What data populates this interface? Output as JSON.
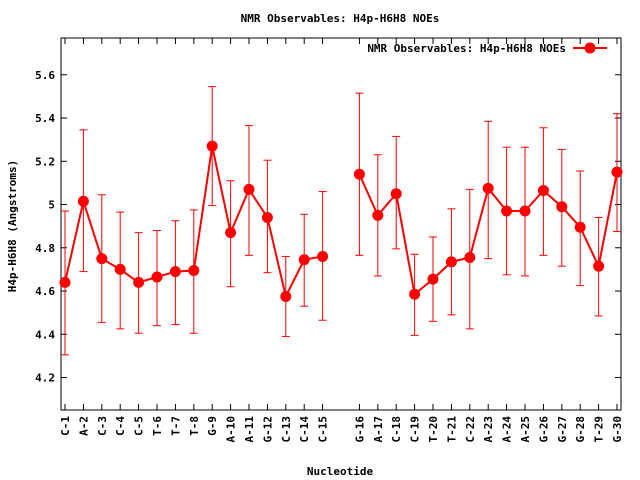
{
  "chart_data": {
    "type": "line",
    "title": "NMR Observables: H4p-H6H8 NOEs",
    "xlabel": "Nucleotide",
    "ylabel": "H4p-H6H8 (Angstroms)",
    "ylim": [
      4.05,
      5.77
    ],
    "yticks": [
      "4.2",
      "4.4",
      "4.6",
      "4.8",
      "5",
      "5.2",
      "5.4",
      "5.6"
    ],
    "legend_position": "top-right",
    "grid": false,
    "series_color": "#ff0000",
    "categories": [
      "C-1",
      "A-2",
      "C-3",
      "C-4",
      "C-5",
      "T-6",
      "T-7",
      "T-8",
      "G-9",
      "A-10",
      "A-11",
      "G-12",
      "C-13",
      "C-14",
      "C-15",
      "G-16",
      "A-17",
      "C-18",
      "C-19",
      "T-20",
      "T-21",
      "C-22",
      "A-23",
      "A-24",
      "A-25",
      "G-26",
      "G-27",
      "G-28",
      "T-29",
      "G-30"
    ],
    "category_index": [
      1,
      2,
      3,
      4,
      5,
      6,
      7,
      8,
      9,
      10,
      11,
      12,
      13,
      14,
      15,
      17,
      18,
      19,
      20,
      21,
      22,
      23,
      24,
      25,
      26,
      27,
      28,
      29,
      30,
      31
    ],
    "xlim": [
      1,
      31
    ],
    "series": [
      {
        "name": "NMR Observables: H4p-H6H8 NOEs",
        "values": [
          4.64,
          5.015,
          4.75,
          4.7,
          4.64,
          4.665,
          4.69,
          4.695,
          5.27,
          4.87,
          5.07,
          4.94,
          4.575,
          4.745,
          4.76,
          5.14,
          4.95,
          5.05,
          4.585,
          4.655,
          4.735,
          4.755,
          5.075,
          4.97,
          4.97,
          5.065,
          4.99,
          4.895,
          4.715,
          5.15
        ],
        "err_low": [
          4.305,
          4.69,
          4.455,
          4.425,
          4.405,
          4.44,
          4.445,
          4.405,
          4.995,
          4.62,
          4.765,
          4.685,
          4.39,
          4.53,
          4.465,
          4.765,
          4.67,
          4.795,
          4.395,
          4.46,
          4.49,
          4.425,
          4.75,
          4.675,
          4.67,
          4.765,
          4.715,
          4.625,
          4.485,
          4.875
        ],
        "err_high": [
          4.97,
          5.345,
          5.045,
          4.965,
          4.87,
          4.88,
          4.925,
          4.975,
          5.545,
          5.11,
          5.365,
          5.205,
          4.76,
          4.955,
          5.06,
          5.515,
          5.23,
          5.315,
          4.77,
          4.85,
          4.98,
          5.07,
          5.385,
          5.265,
          5.265,
          5.355,
          5.255,
          5.155,
          4.94,
          5.42
        ]
      }
    ]
  }
}
